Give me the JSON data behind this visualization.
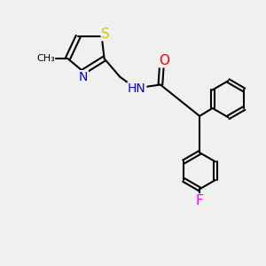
{
  "background_color": "#f0f0f0",
  "atom_colors": {
    "C": "#000000",
    "N": "#0000ff",
    "O": "#ff0000",
    "S": "#cccc00",
    "F": "#ff00ff"
  },
  "bond_color": "#000000",
  "bond_width": 1.5,
  "font_size": 10,
  "fig_size": [
    3.0,
    3.0
  ],
  "dpi": 100
}
